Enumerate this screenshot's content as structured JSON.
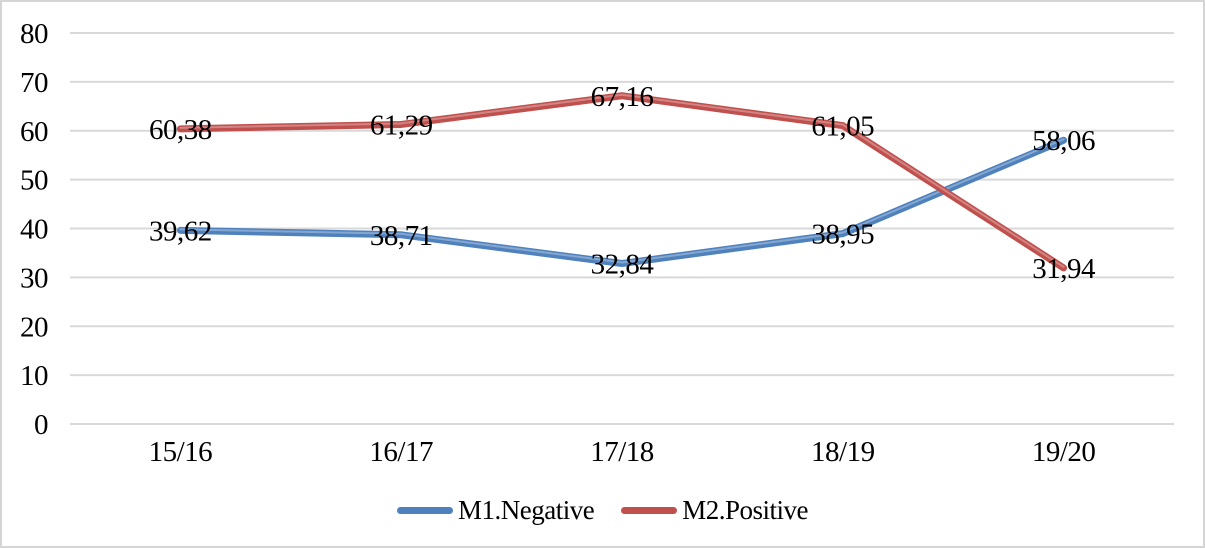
{
  "figure": {
    "background": "#FFFFFF",
    "border_color": "#D5D5D5"
  },
  "chart_data": {
    "type": "line",
    "title": "",
    "xlabel": "",
    "ylabel": "",
    "categories": [
      "15/16",
      "16/17",
      "17/18",
      "18/19",
      "19/20"
    ],
    "series": [
      {
        "name": "M1.Negative",
        "color": "#4F81BD",
        "values": [
          39.62,
          38.71,
          32.84,
          38.95,
          58.06
        ],
        "labels": [
          "39,62",
          "38,71",
          "32,84",
          "38,95",
          "58,06"
        ]
      },
      {
        "name": "M2.Positive",
        "color": "#C0504D",
        "values": [
          60.38,
          61.29,
          67.16,
          61.05,
          31.94
        ],
        "labels": [
          "60,38",
          "61,29",
          "67,16",
          "61,05",
          "31,94"
        ]
      }
    ],
    "ylim": [
      0,
      80
    ],
    "ytick_step": 10,
    "yticks": [
      "0",
      "10",
      "20",
      "30",
      "40",
      "50",
      "60",
      "70",
      "80"
    ],
    "grid": true,
    "gridline_color": "#D9D9D9",
    "text_color": "#000000",
    "decimal_separator": ",",
    "legend_position": "bottom",
    "line_width": 7,
    "markers": false
  }
}
